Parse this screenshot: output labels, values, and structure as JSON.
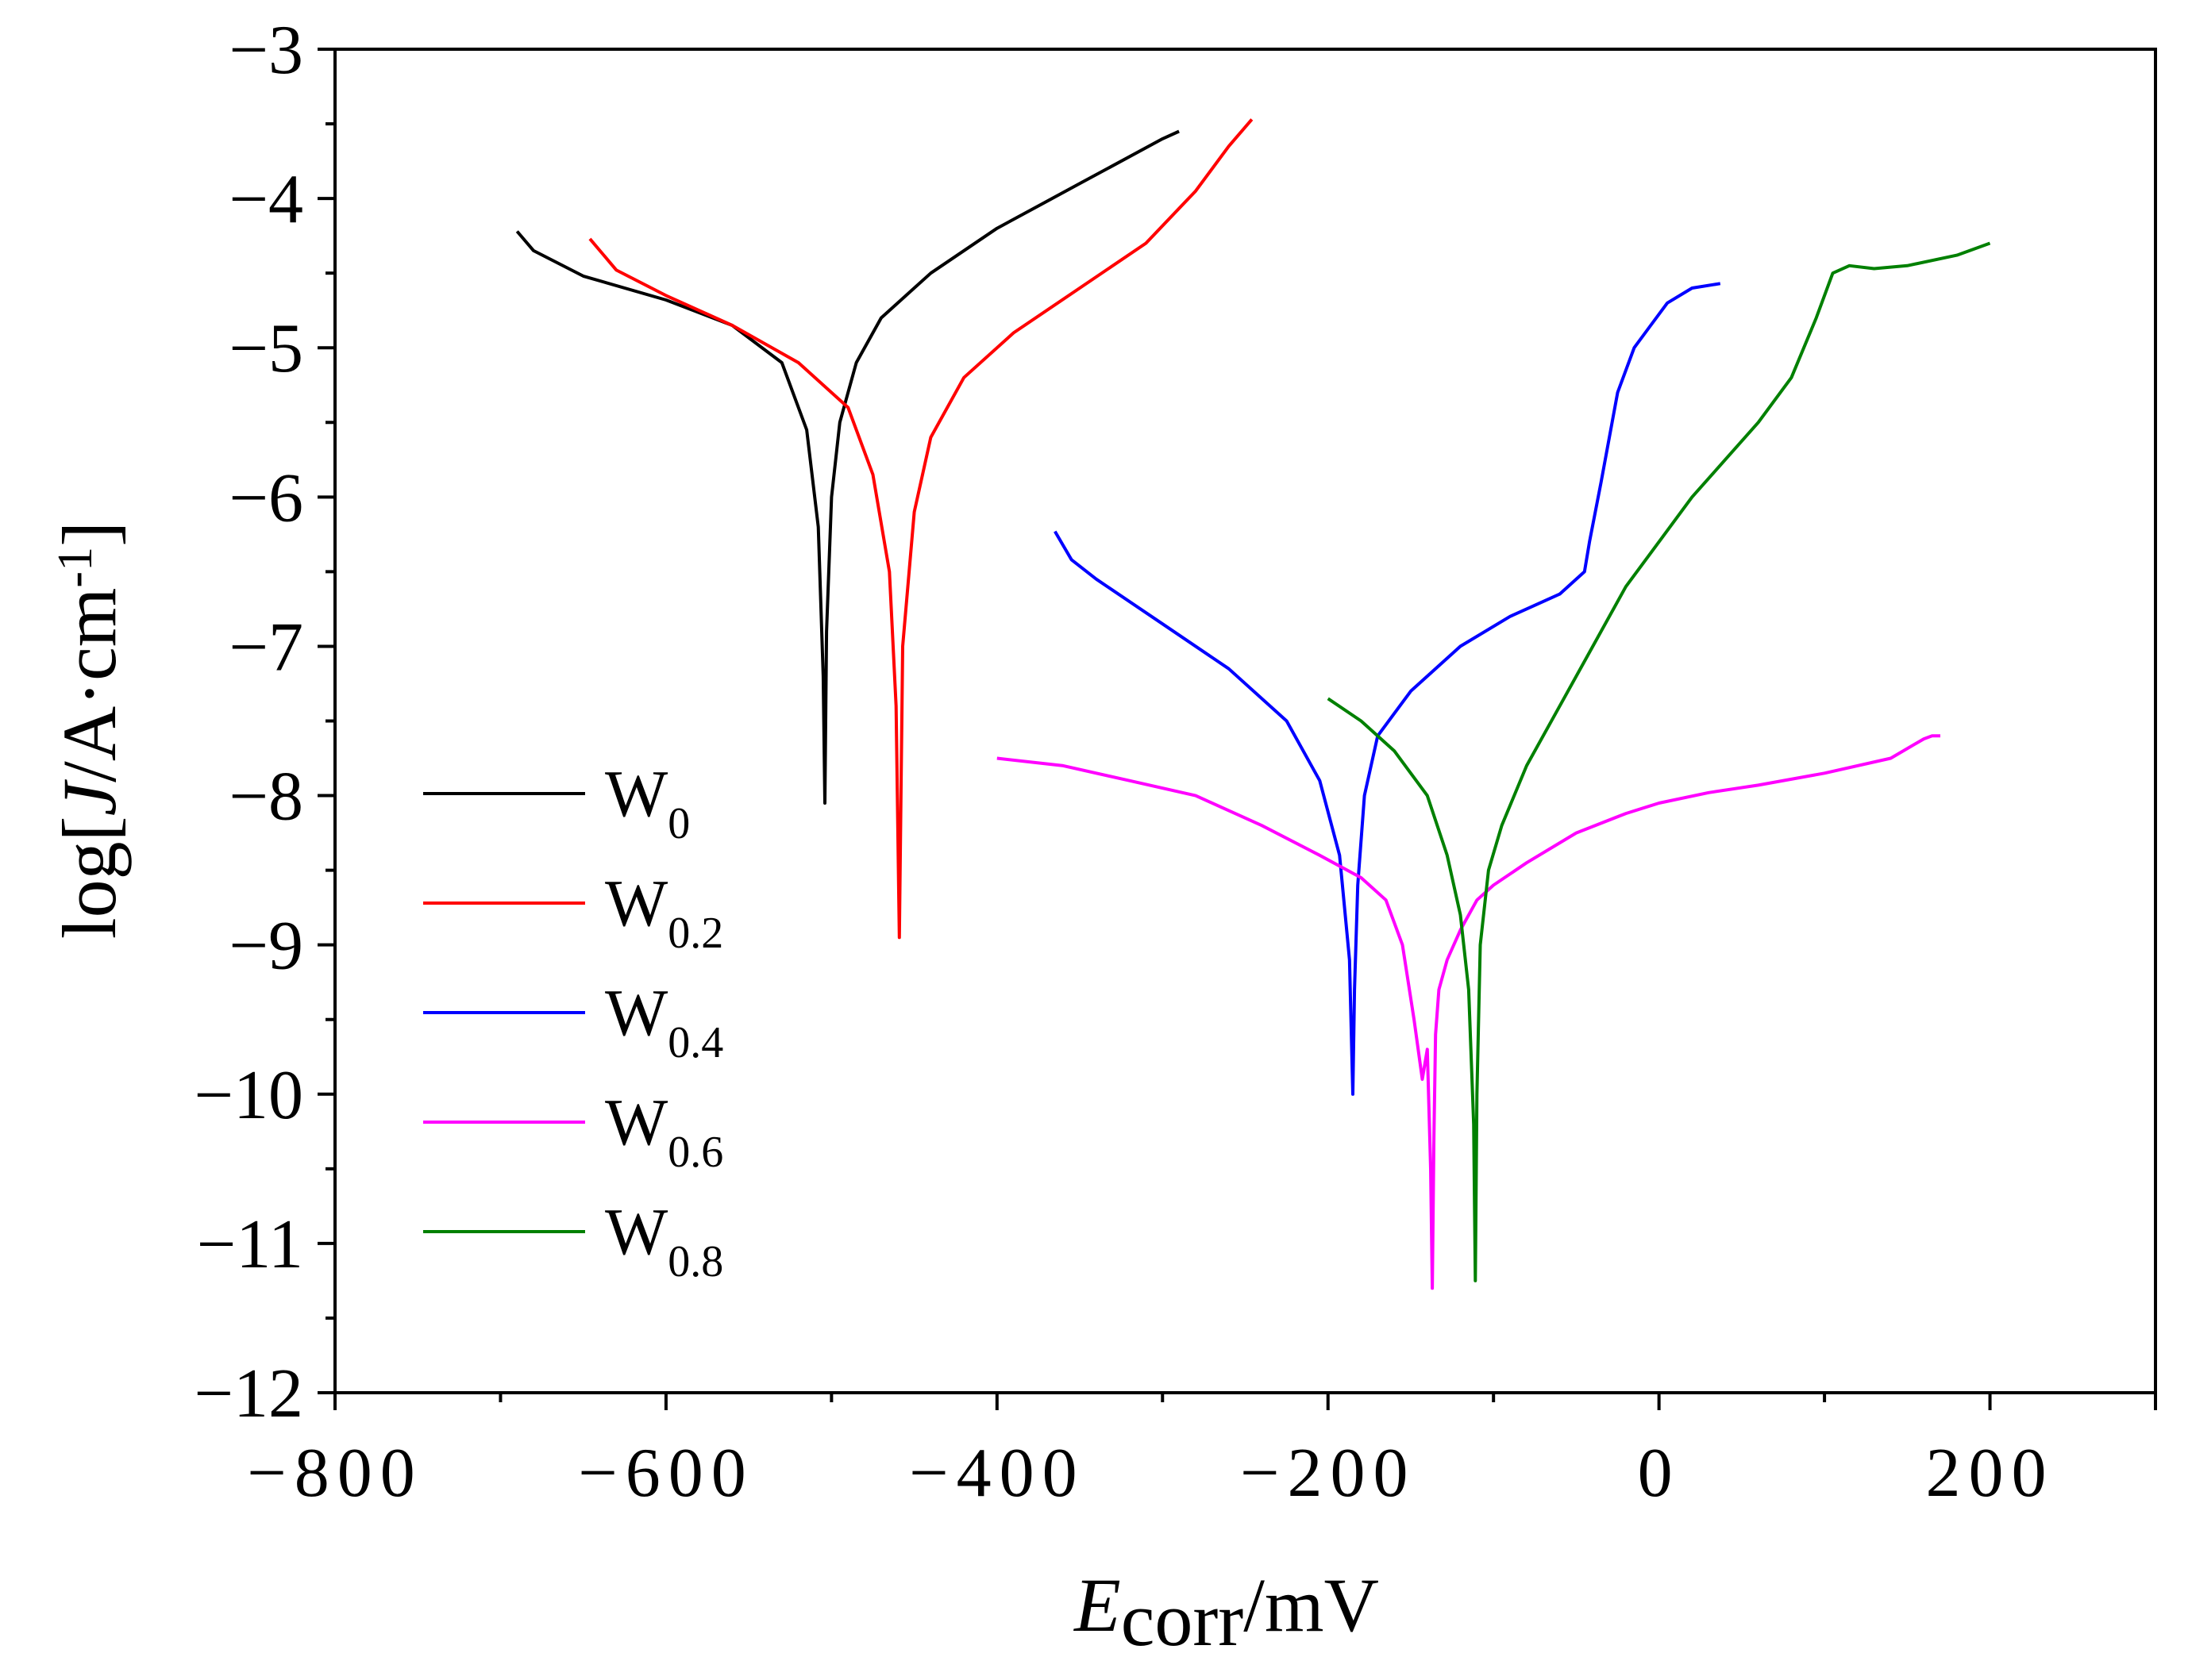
{
  "chart_data": {
    "type": "line",
    "title": "",
    "xlabel": {
      "main": "E",
      "sub": "corr",
      "unit": "/mV"
    },
    "ylabel": {
      "pre": "log[",
      "italic": "J",
      "post": "/A·cm",
      "sup": "-1",
      "close": "]"
    },
    "xlim": [
      -800,
      300
    ],
    "ylim": [
      -12,
      -3
    ],
    "x_ticks": [
      -800,
      -600,
      -400,
      -200,
      0,
      200
    ],
    "x_tick_labels": [
      "−800",
      "−600",
      "−400",
      "−200",
      "0",
      "200"
    ],
    "y_ticks": [
      -3,
      -4,
      -5,
      -6,
      -7,
      -8,
      -9,
      -10,
      -11,
      -12
    ],
    "y_tick_labels": [
      "−3",
      "−4",
      "−5",
      "−6",
      "−7",
      "−8",
      "−9",
      "−10",
      "−11",
      "−12"
    ],
    "legend_position": "left-lower",
    "series": [
      {
        "name": "W0",
        "base": "W",
        "sub": "0",
        "color": "#000000",
        "x": [
          -690,
          -680,
          -650,
          -600,
          -560,
          -530,
          -515,
          -508,
          -505,
          -504,
          -503,
          -500,
          -495,
          -485,
          -470,
          -440,
          -400,
          -350,
          -300,
          -290
        ],
        "y": [
          -4.22,
          -4.35,
          -4.52,
          -4.68,
          -4.85,
          -5.1,
          -5.55,
          -6.2,
          -7.2,
          -8.05,
          -6.9,
          -6.0,
          -5.5,
          -5.1,
          -4.8,
          -4.5,
          -4.2,
          -3.9,
          -3.6,
          -3.55
        ]
      },
      {
        "name": "W0.2",
        "base": "W",
        "sub": "0.2",
        "color": "#ff0000",
        "x": [
          -646,
          -630,
          -600,
          -560,
          -520,
          -490,
          -475,
          -465,
          -461,
          -459,
          -457,
          -450,
          -440,
          -420,
          -390,
          -350,
          -310,
          -280,
          -260,
          -246
        ],
        "y": [
          -4.27,
          -4.48,
          -4.65,
          -4.85,
          -5.1,
          -5.4,
          -5.85,
          -6.5,
          -7.4,
          -8.95,
          -7.0,
          -6.1,
          -5.6,
          -5.2,
          -4.9,
          -4.6,
          -4.3,
          -3.95,
          -3.65,
          -3.47
        ]
      },
      {
        "name": "W0.4",
        "base": "W",
        "sub": "0.4",
        "color": "#0000ff",
        "x": [
          -365,
          -355,
          -340,
          -300,
          -260,
          -225,
          -205,
          -193,
          -187,
          -185,
          -184,
          -182,
          -178,
          -170,
          -150,
          -120,
          -90,
          -60,
          -45,
          -42,
          -35,
          -25,
          -15,
          -5,
          5,
          20,
          37
        ],
        "y": [
          -6.23,
          -6.42,
          -6.55,
          -6.85,
          -7.15,
          -7.5,
          -7.9,
          -8.4,
          -9.1,
          -10.0,
          -9.3,
          -8.6,
          -8.0,
          -7.6,
          -7.3,
          -7.0,
          -6.8,
          -6.65,
          -6.5,
          -6.3,
          -5.9,
          -5.3,
          -5.0,
          -4.85,
          -4.7,
          -4.6,
          -4.57
        ]
      },
      {
        "name": "W0.6",
        "base": "W",
        "sub": "0.6",
        "color": "#ff00ff",
        "x": [
          -400,
          -360,
          -320,
          -280,
          -240,
          -205,
          -180,
          -165,
          -155,
          -148,
          -143,
          -140,
          -138,
          -137,
          -136,
          -135,
          -133,
          -128,
          -120,
          -110,
          -100,
          -80,
          -50,
          -20,
          0,
          30,
          60,
          100,
          140,
          160,
          165,
          170
        ],
        "y": [
          -7.75,
          -7.8,
          -7.9,
          -8.0,
          -8.2,
          -8.4,
          -8.55,
          -8.7,
          -9.0,
          -9.5,
          -9.9,
          -9.7,
          -10.5,
          -11.3,
          -10.3,
          -9.6,
          -9.3,
          -9.1,
          -8.9,
          -8.7,
          -8.6,
          -8.45,
          -8.25,
          -8.12,
          -8.05,
          -7.98,
          -7.93,
          -7.85,
          -7.75,
          -7.62,
          -7.6,
          -7.6
        ]
      },
      {
        "name": "W0.8",
        "base": "W",
        "sub": "0.8",
        "color": "#008000",
        "x": [
          -200,
          -180,
          -160,
          -140,
          -128,
          -120,
          -115,
          -112,
          -111,
          -110,
          -108,
          -103,
          -95,
          -80,
          -60,
          -40,
          -20,
          0,
          20,
          40,
          60,
          80,
          95,
          105,
          115,
          130,
          150,
          180,
          200
        ],
        "y": [
          -7.35,
          -7.5,
          -7.7,
          -8.0,
          -8.4,
          -8.8,
          -9.3,
          -10.2,
          -11.25,
          -10.0,
          -9.0,
          -8.5,
          -8.2,
          -7.8,
          -7.4,
          -7.0,
          -6.6,
          -6.3,
          -6.0,
          -5.75,
          -5.5,
          -5.2,
          -4.8,
          -4.5,
          -4.45,
          -4.47,
          -4.45,
          -4.38,
          -4.3
        ]
      }
    ]
  }
}
